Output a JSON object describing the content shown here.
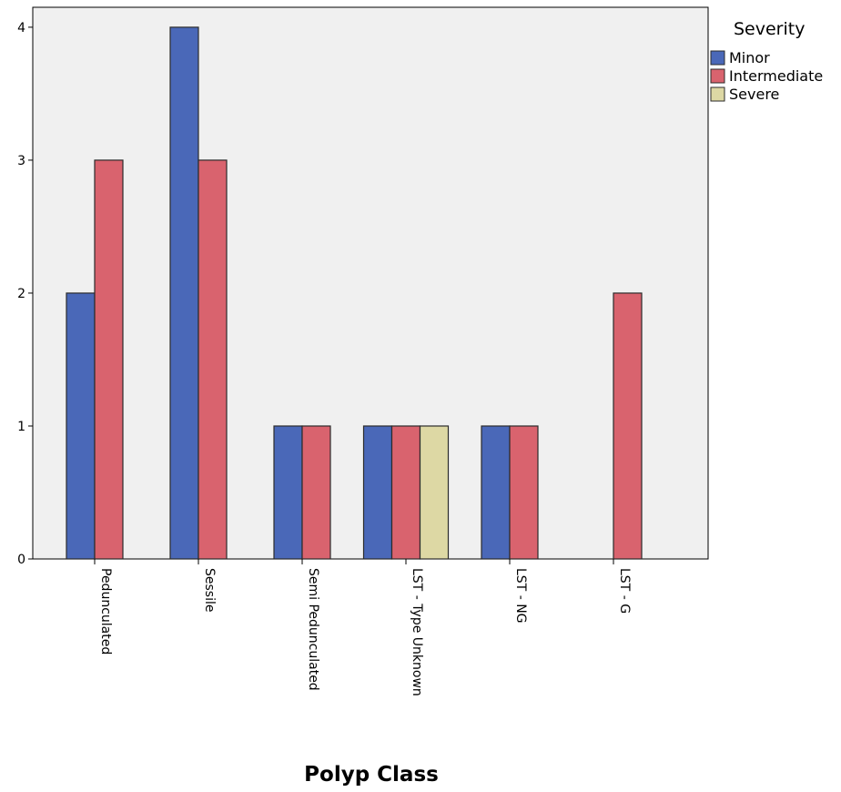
{
  "chart_data": {
    "type": "bar",
    "xlabel": "Polyp Class",
    "ylabel": "",
    "ylim": [
      0,
      4.15
    ],
    "yticks": [
      0,
      1,
      2,
      3,
      4
    ],
    "grid": false,
    "legend_position": "top-right",
    "legend_title": "Severity",
    "categories": [
      "Pedunculated",
      "Sessile",
      "Semi Pedunculated",
      "LST - Type Unknown",
      "LST - NG",
      "LST - G"
    ],
    "series": [
      {
        "name": "Minor",
        "color": "#4a68b8",
        "values": [
          2,
          4,
          1,
          1,
          1,
          0
        ]
      },
      {
        "name": "Intermediate",
        "color": "#d9636e",
        "values": [
          3,
          3,
          1,
          1,
          1,
          2
        ]
      },
      {
        "name": "Severe",
        "color": "#ddd8a4",
        "values": [
          0,
          0,
          0,
          1,
          0,
          0
        ]
      }
    ]
  },
  "colors": {
    "plot_background": "#f0f0f0",
    "bar_outline": "#2b2b2b"
  }
}
